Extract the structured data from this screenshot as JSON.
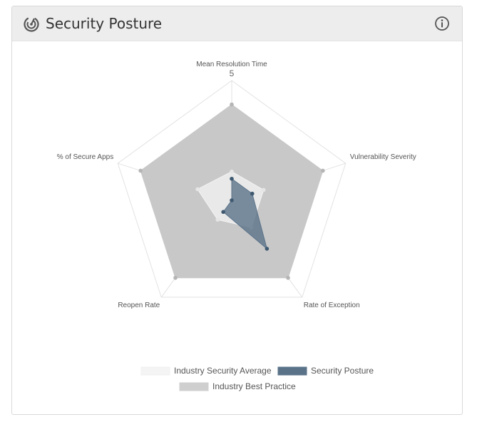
{
  "header": {
    "title": "Security Posture",
    "icon": "radar-icon",
    "info_icon": "info-icon"
  },
  "chart_data": {
    "type": "radar",
    "axes": [
      "Mean Resolution Time",
      "Vulnerability Severity",
      "Rate of Exception",
      "Reopen Rate",
      "% of Secure Apps"
    ],
    "scale_max": 5,
    "tick_labels": [
      "5"
    ],
    "series": [
      {
        "name": "Industry Security Average",
        "values": [
          1.2,
          1.4,
          1.4,
          1.0,
          1.5
        ],
        "color": "#f4f4f4"
      },
      {
        "name": "Security Posture",
        "values": [
          0.9,
          0.9,
          2.5,
          0.6,
          0.0
        ],
        "color": "#5b7389"
      },
      {
        "name": "Industry Best Practice",
        "values": [
          4.0,
          4.0,
          4.0,
          4.0,
          4.0
        ],
        "color": "#c8c8c8"
      }
    ],
    "legend_position": "bottom"
  }
}
